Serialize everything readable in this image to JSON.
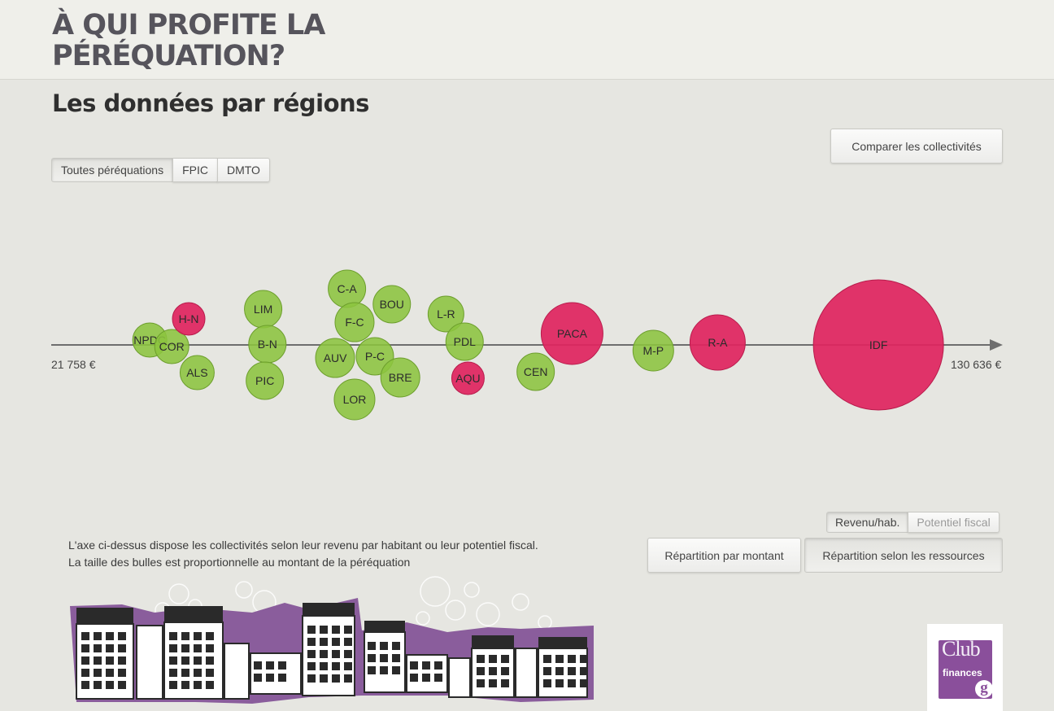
{
  "site": {
    "title": "À QUI PROFITE LA PÉRÉQUATION?"
  },
  "page": {
    "title": "Les données par régions"
  },
  "compare_button": "Comparer les collectivités",
  "tabs": [
    {
      "label": "Toutes péréquations",
      "active": true
    },
    {
      "label": "FPIC",
      "active": false
    },
    {
      "label": "DMTO",
      "active": false
    }
  ],
  "axis": {
    "min_label": "21 758 €",
    "max_label": "130 636 €"
  },
  "colors": {
    "beneficiary": "#8cc43f",
    "contributor": "#e0245e",
    "axis": "#6e6e6e"
  },
  "chart_data": {
    "type": "scatter",
    "x_axis": {
      "min": 21758,
      "max": 130636,
      "unit": "€",
      "measure": "Revenu/hab."
    },
    "size_encoding": "montant de la péréquation",
    "series": [
      {
        "group": "beneficiary",
        "regions": [
          "NPDC",
          "COR",
          "ALS",
          "LIM",
          "B-N",
          "PIC",
          "C-A",
          "BOU",
          "F-C",
          "AUV",
          "P-C",
          "BRE",
          "LOR",
          "L-R",
          "PDL",
          "CEN",
          "M-P"
        ]
      },
      {
        "group": "contributor",
        "regions": [
          "H-N",
          "AQU",
          "PACA",
          "R-A",
          "IDF"
        ]
      }
    ],
    "bubbles": [
      {
        "label": "NPDC",
        "group": "beneficiary",
        "income": 33400,
        "size": 21
      },
      {
        "label": "COR",
        "group": "beneficiary",
        "income": 36000,
        "size": 21
      },
      {
        "label": "H-N",
        "group": "contributor",
        "income": 38000,
        "size": 20
      },
      {
        "label": "ALS",
        "group": "beneficiary",
        "income": 39000,
        "size": 21
      },
      {
        "label": "LIM",
        "group": "beneficiary",
        "income": 46800,
        "size": 23
      },
      {
        "label": "B-N",
        "group": "beneficiary",
        "income": 47300,
        "size": 23
      },
      {
        "label": "PIC",
        "group": "beneficiary",
        "income": 47000,
        "size": 23
      },
      {
        "label": "AUV",
        "group": "beneficiary",
        "income": 55300,
        "size": 24
      },
      {
        "label": "C-A",
        "group": "beneficiary",
        "income": 56700,
        "size": 23
      },
      {
        "label": "F-C",
        "group": "beneficiary",
        "income": 57600,
        "size": 24
      },
      {
        "label": "LOR",
        "group": "beneficiary",
        "income": 57600,
        "size": 25
      },
      {
        "label": "P-C",
        "group": "beneficiary",
        "income": 60000,
        "size": 23
      },
      {
        "label": "BOU",
        "group": "beneficiary",
        "income": 62000,
        "size": 23
      },
      {
        "label": "BRE",
        "group": "beneficiary",
        "income": 63000,
        "size": 24
      },
      {
        "label": "L-R",
        "group": "beneficiary",
        "income": 68400,
        "size": 22
      },
      {
        "label": "PDL",
        "group": "beneficiary",
        "income": 70600,
        "size": 23
      },
      {
        "label": "AQU",
        "group": "contributor",
        "income": 71000,
        "size": 20
      },
      {
        "label": "CEN",
        "group": "beneficiary",
        "income": 79000,
        "size": 23
      },
      {
        "label": "PACA",
        "group": "contributor",
        "income": 83300,
        "size": 38
      },
      {
        "label": "M-P",
        "group": "beneficiary",
        "income": 92900,
        "size": 25
      },
      {
        "label": "R-A",
        "group": "contributor",
        "income": 100500,
        "size": 34
      },
      {
        "label": "IDF",
        "group": "contributor",
        "income": 119500,
        "size": 80
      }
    ]
  },
  "measure_toggle": [
    {
      "label": "Revenu/hab.",
      "active": true
    },
    {
      "label": "Potentiel fiscal",
      "active": false
    }
  ],
  "description": {
    "line1": "L'axe ci-dessus dispose les collectivités selon leur revenu par habitant ou leur potentiel fiscal.",
    "line2": "La taille des bulles est proportionnelle au montant de la péréquation"
  },
  "repartition": {
    "amount": "Répartition par montant",
    "resources": "Répartition selon les ressources"
  },
  "logo": {
    "line1": "Club",
    "line2": "finances",
    "mark": "g"
  }
}
